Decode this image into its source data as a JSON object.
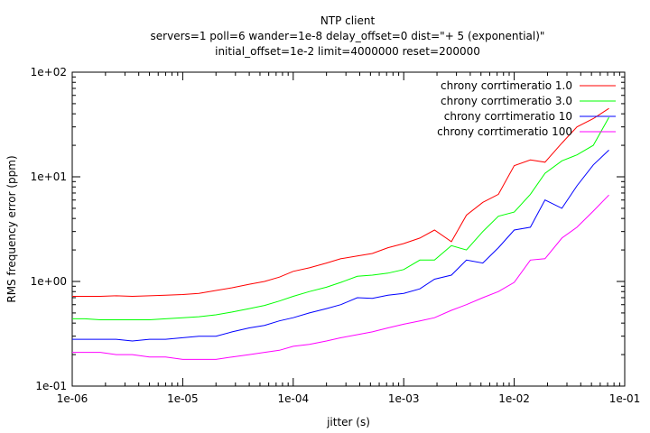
{
  "chart_data": {
    "type": "line",
    "title_lines": [
      "NTP client",
      "servers=1 poll=6 wander=1e-8 delay_offset=0 dist=\"+ 5 (exponential)\"",
      "initial_offset=1e-2 limit=4000000 reset=200000"
    ],
    "xlabel": "jitter (s)",
    "ylabel": "RMS frequency error (ppm)",
    "x_scale": "log",
    "y_scale": "log",
    "xlim": [
      1e-06,
      0.1
    ],
    "ylim": [
      0.1,
      100
    ],
    "x_ticks": [
      {
        "value": 1e-06,
        "label": "1e-06"
      },
      {
        "value": 1e-05,
        "label": "1e-05"
      },
      {
        "value": 0.0001,
        "label": "1e-04"
      },
      {
        "value": 0.001,
        "label": "1e-03"
      },
      {
        "value": 0.01,
        "label": "1e-02"
      },
      {
        "value": 0.1,
        "label": "1e-01"
      }
    ],
    "y_ticks": [
      {
        "value": 0.1,
        "label": "1e-01"
      },
      {
        "value": 1,
        "label": "1e+00"
      },
      {
        "value": 10,
        "label": "1e+01"
      },
      {
        "value": 100,
        "label": "1e+02"
      }
    ],
    "grid": false,
    "legend_position": "top-right",
    "x": [
      1e-06,
      1.3e-06,
      1.8e-06,
      2.5e-06,
      3.5e-06,
      5e-06,
      7e-06,
      1e-05,
      1.4e-05,
      2e-05,
      2.8e-05,
      4e-05,
      5.5e-05,
      7.5e-05,
      0.0001,
      0.00014,
      0.0002,
      0.00027,
      0.00038,
      0.00052,
      0.00072,
      0.001,
      0.0014,
      0.0019,
      0.0027,
      0.0037,
      0.0052,
      0.0072,
      0.01,
      0.014,
      0.019,
      0.027,
      0.037,
      0.052,
      0.072
    ],
    "series": [
      {
        "name": "chrony corrtimeratio 1.0",
        "color": "#ff0000",
        "values": [
          0.72,
          0.72,
          0.72,
          0.73,
          0.72,
          0.73,
          0.74,
          0.75,
          0.77,
          0.82,
          0.87,
          0.94,
          1.0,
          1.1,
          1.25,
          1.35,
          1.5,
          1.65,
          1.75,
          1.85,
          2.1,
          2.3,
          2.6,
          3.1,
          2.4,
          4.3,
          5.7,
          6.8,
          12.8,
          14.5,
          13.8,
          21.0,
          30.0,
          36.0,
          45.0
        ]
      },
      {
        "name": "chrony corrtimeratio 3.0",
        "color": "#00ff00",
        "values": [
          0.44,
          0.44,
          0.43,
          0.43,
          0.43,
          0.43,
          0.44,
          0.45,
          0.46,
          0.48,
          0.51,
          0.55,
          0.59,
          0.65,
          0.72,
          0.8,
          0.88,
          0.98,
          1.12,
          1.15,
          1.2,
          1.3,
          1.6,
          1.6,
          2.2,
          2.0,
          3.0,
          4.2,
          4.6,
          6.8,
          10.8,
          14.2,
          16.2,
          20.0,
          37.0
        ]
      },
      {
        "name": "chrony corrtimeratio 10",
        "color": "#0000ff",
        "values": [
          0.28,
          0.28,
          0.28,
          0.28,
          0.27,
          0.28,
          0.28,
          0.29,
          0.3,
          0.3,
          0.33,
          0.36,
          0.38,
          0.42,
          0.45,
          0.5,
          0.55,
          0.6,
          0.7,
          0.69,
          0.74,
          0.77,
          0.85,
          1.05,
          1.15,
          1.6,
          1.5,
          2.1,
          3.1,
          3.3,
          6.0,
          5.0,
          8.2,
          13.0,
          18.0
        ]
      },
      {
        "name": "chrony corrtimeratio 100",
        "color": "#ff00ff",
        "values": [
          0.21,
          0.21,
          0.21,
          0.2,
          0.2,
          0.19,
          0.19,
          0.18,
          0.18,
          0.18,
          0.19,
          0.2,
          0.21,
          0.22,
          0.24,
          0.25,
          0.27,
          0.29,
          0.31,
          0.33,
          0.36,
          0.39,
          0.42,
          0.45,
          0.53,
          0.6,
          0.7,
          0.8,
          0.98,
          1.6,
          1.65,
          2.6,
          3.3,
          4.7,
          6.7
        ]
      }
    ]
  }
}
